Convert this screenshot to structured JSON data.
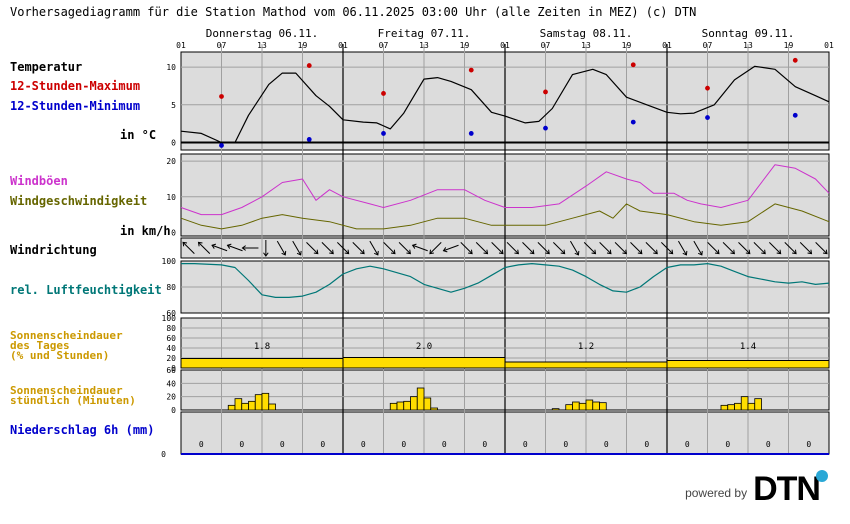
{
  "header": {
    "title": "Vorhersagediagramm für die Station Mathod vom 06.11.2025 03:00 Uhr (alle Zeiten in MEZ)   (c) DTN"
  },
  "days": [
    "Donnerstag 06.11.",
    "Freitag 07.11.",
    "Samstag 08.11.",
    "Sonntag 09.11."
  ],
  "hour_ticks": [
    "01",
    "07",
    "13",
    "19",
    "01",
    "07",
    "13",
    "19",
    "01",
    "07",
    "13",
    "19",
    "01",
    "07",
    "13",
    "19",
    "01"
  ],
  "labels": {
    "temperatur": "Temperatur",
    "max": "12-Stunden-Maximum",
    "min": "12-Stunden-Minimum",
    "unit_c": "in °C",
    "windboen": "Windböen",
    "windgeschw": "Windgeschwindigkeit",
    "unit_kmh": "in km/h",
    "windrichtung": "Windrichtung",
    "luftfeuchte": "rel. Luftfeuchtigkeit",
    "sonne_tag_1": "Sonnenscheindauer",
    "sonne_tag_2": "des Tages",
    "sonne_tag_3": "(% und Stunden)",
    "sonne_std_1": "Sonnenscheindauer",
    "sonne_std_2": "stündlich (Minuten)",
    "niederschlag": "Niederschlag 6h (mm)"
  },
  "colors": {
    "max": "#cc0000",
    "min": "#0000cc",
    "gust": "#cc33cc",
    "wind": "#666600",
    "humidity": "#007777",
    "sun_label": "#cc9900",
    "sun_fill": "#ffdd00",
    "precip_label": "#0000cc",
    "panel_bg": "#dcdcdc"
  },
  "chart_data": {
    "type": "line",
    "x_unit": "hours since 06.11. 01:00",
    "temperature": {
      "ylim": [
        -1,
        12
      ],
      "yticks": [
        0,
        5,
        10
      ],
      "x": [
        0,
        3,
        6,
        8,
        10,
        13,
        15,
        17,
        20,
        22,
        24,
        27,
        29,
        31,
        33,
        36,
        38,
        40,
        43,
        46,
        48,
        51,
        53,
        55,
        58,
        61,
        63,
        66,
        69,
        72,
        74,
        76,
        79,
        82,
        85,
        88,
        91,
        94,
        96
      ],
      "y": [
        1.5,
        1.2,
        0,
        0,
        3.6,
        7.7,
        9.2,
        9.2,
        6.2,
        4.8,
        3,
        2.7,
        2.6,
        1.8,
        3.9,
        8.4,
        8.6,
        8.1,
        7,
        4,
        3.5,
        2.6,
        2.8,
        4.5,
        9,
        9.7,
        9,
        6,
        5,
        4,
        3.8,
        3.9,
        5,
        8.3,
        10.1,
        9.7,
        7.4,
        6.2,
        5.4
      ],
      "max_points": {
        "x": [
          6,
          19,
          30,
          43,
          54,
          67,
          78,
          91
        ],
        "y": [
          6.1,
          10.2,
          6.5,
          9.6,
          6.7,
          10.3,
          7.2,
          10.9
        ]
      },
      "min_points": {
        "x": [
          6,
          19,
          30,
          43,
          54,
          67,
          78,
          91
        ],
        "y": [
          -0.4,
          0.4,
          1.2,
          1.2,
          1.9,
          2.7,
          3.3,
          3.6
        ]
      }
    },
    "wind": {
      "ylim": [
        -1,
        22
      ],
      "yticks": [
        0,
        10,
        20
      ],
      "gust": {
        "x": [
          0,
          3,
          6,
          9,
          12,
          15,
          18,
          20,
          22,
          24,
          28,
          30,
          34,
          38,
          42,
          45,
          48,
          52,
          56,
          60,
          63,
          66,
          68,
          70,
          73,
          75,
          77,
          80,
          84,
          88,
          91,
          94,
          96
        ],
        "y": [
          7,
          5,
          5,
          7,
          10,
          14,
          15,
          9,
          12,
          10,
          8,
          7,
          9,
          12,
          12,
          9,
          7,
          7,
          8,
          13,
          17,
          15,
          14,
          11,
          11,
          9,
          8,
          7,
          9,
          19,
          18,
          15,
          11
        ]
      },
      "speed": {
        "x": [
          0,
          3,
          6,
          9,
          12,
          15,
          18,
          22,
          26,
          30,
          34,
          38,
          42,
          46,
          50,
          54,
          58,
          62,
          64,
          66,
          68,
          72,
          76,
          80,
          84,
          88,
          92,
          96
        ],
        "y": [
          4,
          2,
          1,
          2,
          4,
          5,
          4,
          3,
          1,
          1,
          2,
          4,
          4,
          2,
          2,
          2,
          4,
          6,
          4,
          8,
          6,
          5,
          3,
          2,
          3,
          8,
          6,
          3
        ]
      }
    },
    "wind_direction": {
      "angles_deg": [
        225,
        225,
        200,
        200,
        180,
        90,
        60,
        60,
        45,
        45,
        45,
        45,
        60,
        45,
        45,
        200,
        135,
        160,
        45,
        45,
        45,
        45,
        45,
        45,
        45,
        60,
        45,
        45,
        45,
        45,
        45,
        45,
        60,
        60,
        45,
        45,
        45,
        45,
        45,
        45,
        45,
        45
      ]
    },
    "humidity": {
      "ylim": [
        60,
        100
      ],
      "yticks": [
        60,
        80,
        100
      ],
      "x": [
        0,
        2,
        6,
        8,
        10,
        12,
        14,
        16,
        18,
        20,
        22,
        24,
        26,
        28,
        30,
        32,
        34,
        36,
        38,
        40,
        42,
        44,
        46,
        48,
        50,
        52,
        54,
        56,
        58,
        60,
        62,
        64,
        66,
        68,
        70,
        72,
        74,
        76,
        78,
        80,
        82,
        84,
        86,
        88,
        90,
        92,
        94,
        96
      ],
      "y": [
        98,
        98,
        97,
        95,
        85,
        74,
        72,
        72,
        73,
        76,
        82,
        90,
        94,
        96,
        94,
        91,
        88,
        82,
        79,
        76,
        79,
        83,
        89,
        95,
        97,
        98,
        97,
        96,
        93,
        88,
        82,
        77,
        76,
        80,
        88,
        95,
        97,
        97,
        98,
        96,
        92,
        88,
        86,
        84,
        83,
        84,
        82,
        83
      ]
    },
    "sunshine_daily": {
      "categories": [
        "Donnerstag 06.11.",
        "Freitag 07.11.",
        "Samstag 08.11.",
        "Sonntag 09.11."
      ],
      "hours": [
        1.8,
        2.0,
        1.2,
        1.4
      ],
      "hours_text": [
        "1.8",
        "2.0",
        "1.2",
        "1.4"
      ],
      "percent": [
        19,
        21,
        12,
        15
      ],
      "yticks": [
        0,
        20,
        40,
        60,
        80,
        100
      ]
    },
    "sunshine_hourly": {
      "yticks": [
        0,
        20,
        40,
        60
      ],
      "bars": [
        {
          "x": 7,
          "y": 7
        },
        {
          "x": 8,
          "y": 17
        },
        {
          "x": 9,
          "y": 10
        },
        {
          "x": 10,
          "y": 13
        },
        {
          "x": 11,
          "y": 23
        },
        {
          "x": 12,
          "y": 25
        },
        {
          "x": 13,
          "y": 9
        },
        {
          "x": 31,
          "y": 10
        },
        {
          "x": 32,
          "y": 12
        },
        {
          "x": 33,
          "y": 13
        },
        {
          "x": 34,
          "y": 20
        },
        {
          "x": 35,
          "y": 33
        },
        {
          "x": 36,
          "y": 18
        },
        {
          "x": 37,
          "y": 3
        },
        {
          "x": 55,
          "y": 2
        },
        {
          "x": 57,
          "y": 8
        },
        {
          "x": 58,
          "y": 12
        },
        {
          "x": 59,
          "y": 10
        },
        {
          "x": 60,
          "y": 15
        },
        {
          "x": 61,
          "y": 12
        },
        {
          "x": 62,
          "y": 11
        },
        {
          "x": 80,
          "y": 7
        },
        {
          "x": 81,
          "y": 8
        },
        {
          "x": 82,
          "y": 10
        },
        {
          "x": 83,
          "y": 20
        },
        {
          "x": 84,
          "y": 10
        },
        {
          "x": 85,
          "y": 17
        }
      ]
    },
    "precipitation_6h": {
      "ytick": "0",
      "values": [
        0,
        0,
        0,
        0,
        0,
        0,
        0,
        0,
        0,
        0,
        0,
        0,
        0,
        0,
        0,
        0
      ],
      "value_text": [
        "0",
        "0",
        "0",
        "0",
        "0",
        "0",
        "0",
        "0",
        "0",
        "0",
        "0",
        "0",
        "0",
        "0",
        "0",
        "0"
      ]
    }
  },
  "branding": {
    "powered_by": "powered by",
    "logo": "DTN"
  }
}
